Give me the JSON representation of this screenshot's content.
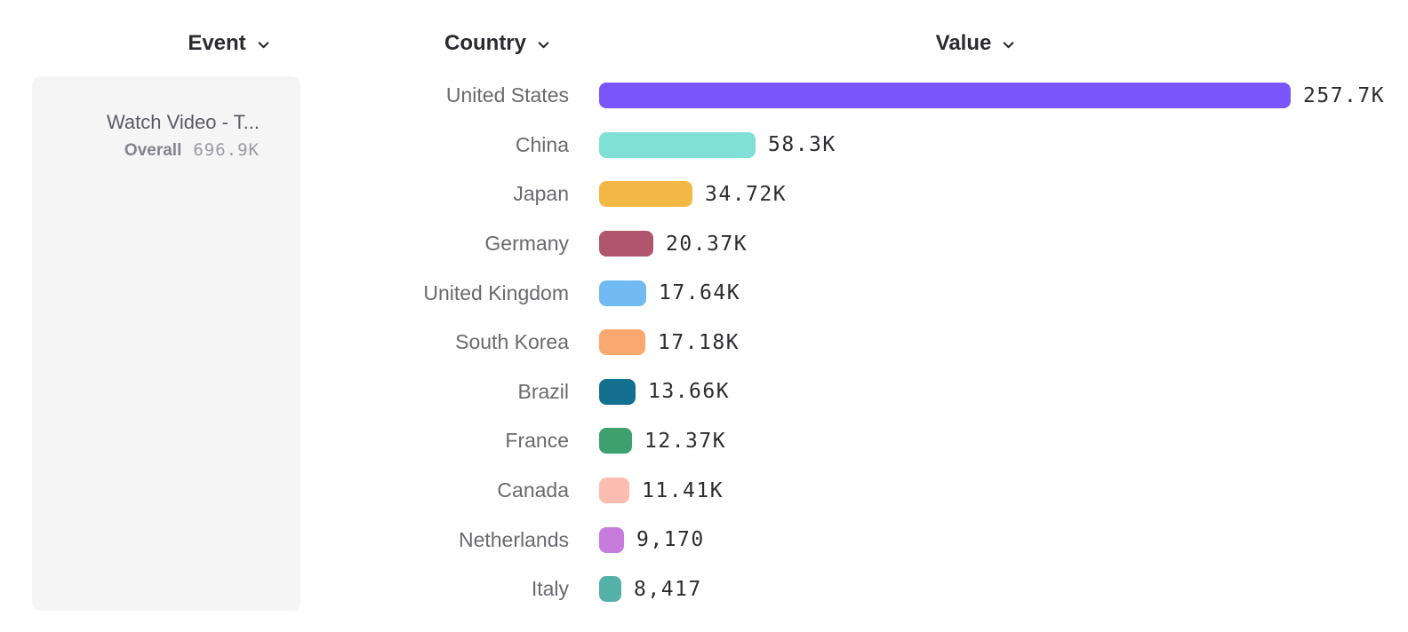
{
  "headers": {
    "event": {
      "label": "Event"
    },
    "country": {
      "label": "Country"
    },
    "value": {
      "label": "Value"
    }
  },
  "event_panel": {
    "event_name": "Watch Video - T...",
    "metric_label": "Overall",
    "metric_value": "696.9K"
  },
  "icons": {
    "sort_dropdown": "chevron-down"
  },
  "chart_data": {
    "type": "bar",
    "orientation": "horizontal",
    "title": "",
    "xlabel": "",
    "ylabel": "Country",
    "grid": false,
    "legend": "none",
    "categories": [
      "United States",
      "China",
      "Japan",
      "Germany",
      "United Kingdom",
      "South Korea",
      "Brazil",
      "France",
      "Canada",
      "Netherlands",
      "Italy"
    ],
    "values": [
      257700,
      58300,
      34720,
      20370,
      17640,
      17180,
      13660,
      12370,
      11410,
      9170,
      8417
    ],
    "value_labels": [
      "257.7K",
      "58.3K",
      "34.72K",
      "20.37K",
      "17.64K",
      "17.18K",
      "13.66K",
      "12.37K",
      "11.41K",
      "9,170",
      "8,417"
    ],
    "colors": [
      "#7a55fa",
      "#80e0d5",
      "#f3b844",
      "#b0566c",
      "#71baf4",
      "#f9a96f",
      "#14708f",
      "#3ea06e",
      "#fcbdb1",
      "#c77bdc",
      "#55b1a8"
    ],
    "xlim": [
      0,
      257700
    ]
  }
}
